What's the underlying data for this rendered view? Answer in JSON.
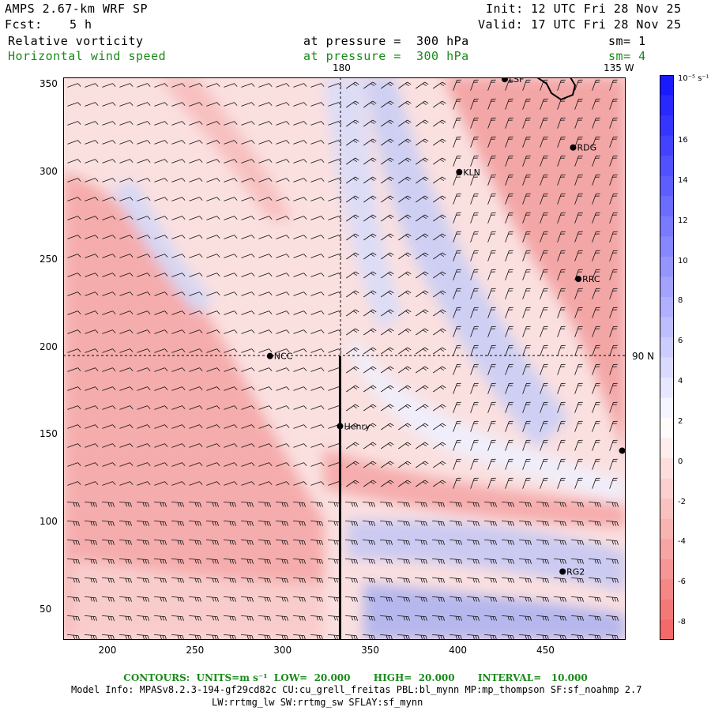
{
  "header": {
    "model_title": "AMPS 2.67-km WRF SP",
    "init_label": "Init:",
    "init_value": "12 UTC Fri 28 Nov 25",
    "fcst_label": "Fcst:",
    "fcst_value": "5 h",
    "valid_label": "Valid:",
    "valid_value": "17 UTC Fri 28 Nov 25",
    "field1": "Relative vorticity",
    "field1_level": "at pressure =  300 hPa",
    "field1_sm": "sm= 1",
    "field2": "Horizontal wind speed",
    "field2_level": "at pressure =  300 hPa",
    "field2_sm": "sm= 4"
  },
  "map_labels": {
    "lon_180": "180",
    "lon_135w": "135 W",
    "lat_90n": "90 N"
  },
  "stations": [
    {
      "name": "LSF",
      "gx": 427,
      "gy": 353
    },
    {
      "name": "RDG",
      "gx": 466,
      "gy": 314
    },
    {
      "name": "KLN",
      "gx": 401,
      "gy": 300
    },
    {
      "name": "RRC",
      "gx": 469,
      "gy": 239
    },
    {
      "name": "NCC",
      "gx": 293,
      "gy": 195
    },
    {
      "name": "Henry",
      "gx": 333,
      "gy": 155
    },
    {
      "name": "",
      "gx": 494,
      "gy": 141
    },
    {
      "name": "RG2",
      "gx": 460,
      "gy": 72
    }
  ],
  "chart_data": {
    "type": "heatmap",
    "x_ticks": [
      200,
      250,
      300,
      350,
      400,
      450
    ],
    "y_ticks": [
      50,
      100,
      150,
      200,
      250,
      300,
      350
    ],
    "xlim": [
      175,
      496
    ],
    "ylim": [
      33,
      354
    ],
    "colorbar": {
      "unit": "10⁻⁵ s⁻¹",
      "ticks": [
        16,
        14,
        12,
        10,
        8,
        6,
        4,
        2,
        0,
        -2,
        -4,
        -6,
        -8
      ],
      "colors_high": "#1a1aff",
      "colors_low": "#f26a6a"
    },
    "cross_section_line": {
      "x": 333,
      "y_start": 33,
      "y_end": 195
    }
  },
  "footer": {
    "contours": "CONTOURS:  UNITS=m s⁻¹  LOW=  20.000       HIGH=  20.000       INTERVAL=   10.000",
    "model_info": "Model Info: MPASv8.2.3-194-gf29cd82c CU:cu_grell_freitas PBL:bl_mynn MP:mp_thompson SF:sf_noahmp 2.7",
    "physics": "LW:rrtmg_lw SW:rrtmg_sw SFLAY:sf_mynn"
  }
}
